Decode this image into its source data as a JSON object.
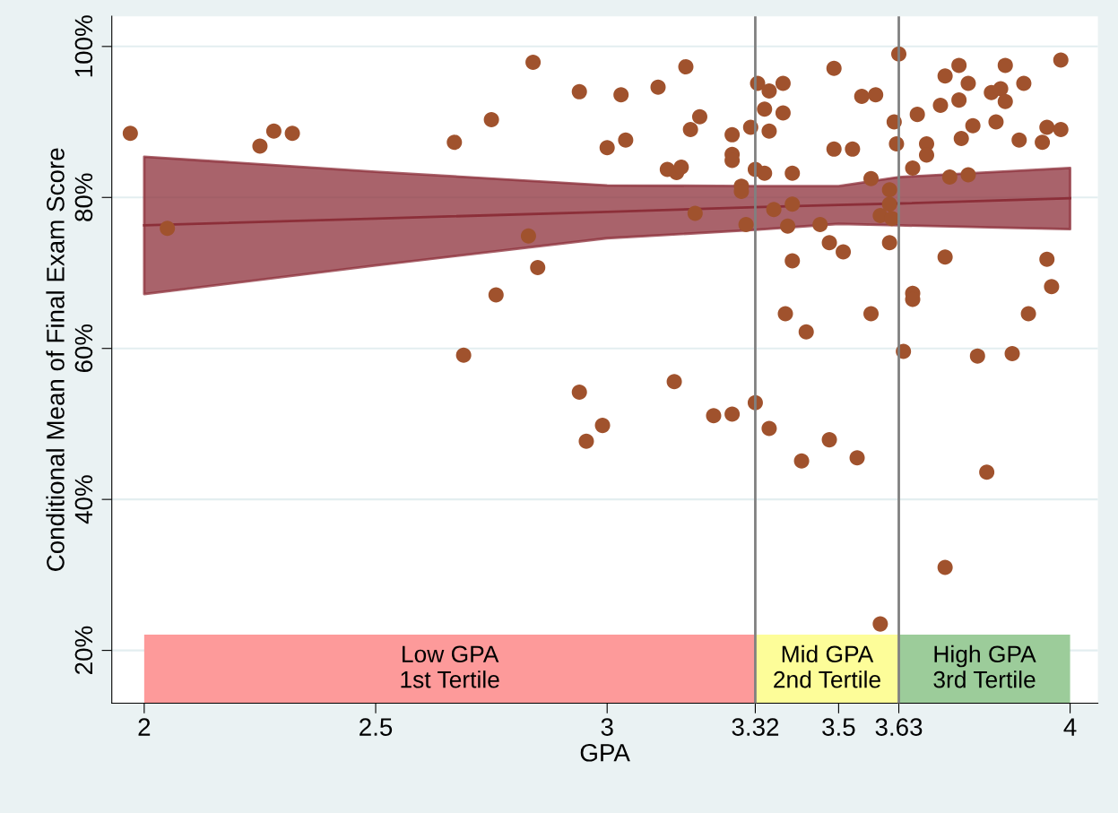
{
  "chart_data": {
    "type": "scatter",
    "xlabel": "GPA",
    "ylabel": "Conditional Mean of Final Exam Score",
    "xlim": [
      1.93,
      4.06
    ],
    "ylim": [
      13,
      104
    ],
    "xticks": [
      2,
      2.5,
      3,
      3.32,
      3.5,
      3.63,
      4
    ],
    "yticks": [
      {
        "value": 20,
        "label": "20%"
      },
      {
        "value": 40,
        "label": "40%"
      },
      {
        "value": 60,
        "label": "60%"
      },
      {
        "value": 80,
        "label": "80%"
      },
      {
        "value": 100,
        "label": "100%"
      }
    ],
    "grid": "y",
    "marker": "circle",
    "legend": false,
    "series": [
      {
        "type": "line",
        "marker": "none",
        "color": "#8c2f39",
        "x": [
          2,
          2.5,
          3,
          3.32,
          3.5,
          3.63,
          4
        ],
        "values": [
          76.3,
          77.2,
          78.1,
          78.7,
          79.0,
          79.2,
          79.9
        ],
        "lower": [
          67.2,
          71.0,
          74.6,
          75.7,
          76.5,
          76.3,
          75.8
        ],
        "upper": [
          85.4,
          83.4,
          81.6,
          81.5,
          81.5,
          82.7,
          83.9
        ]
      },
      {
        "color": "#a0522d",
        "x": [
          1.97,
          2.05,
          2.25,
          2.28,
          2.32,
          2.67,
          2.75,
          2.84,
          2.94,
          2.83,
          2.85,
          2.76,
          2.69,
          2.94,
          2.99,
          2.955,
          3.03,
          3.11,
          3.17,
          3.2,
          3.18,
          3.0,
          3.04,
          3.13,
          3.15,
          3.16,
          3.19,
          3.27,
          3.27,
          3.27,
          3.29,
          3.29,
          3.3,
          3.31,
          3.325,
          3.35,
          3.38,
          3.34,
          3.38,
          3.35,
          3.32,
          3.34,
          3.4,
          3.36,
          3.4,
          3.39,
          3.46,
          3.48,
          3.51,
          3.4,
          3.49,
          3.55,
          3.58,
          3.49,
          3.53,
          3.57,
          3.61,
          3.61,
          3.59,
          3.615,
          3.61,
          3.62,
          3.625,
          3.63,
          3.67,
          3.66,
          3.69,
          3.69,
          3.73,
          3.76,
          3.78,
          3.72,
          3.76,
          3.79,
          3.765,
          3.74,
          3.78,
          3.83,
          3.85,
          3.86,
          3.86,
          3.9,
          3.84,
          3.89,
          3.95,
          3.94,
          3.98,
          3.98,
          3.73,
          3.95,
          3.96,
          3.91,
          3.66,
          3.66,
          3.57,
          3.385,
          3.43,
          3.64,
          3.8,
          3.875,
          3.145,
          3.23,
          3.27,
          3.32,
          3.35,
          3.42,
          3.48,
          3.54,
          3.82,
          3.73,
          3.59
        ],
        "values": [
          88.5,
          75.9,
          86.8,
          88.8,
          88.5,
          87.3,
          90.3,
          97.9,
          94.0,
          74.9,
          70.7,
          67.1,
          59.1,
          54.2,
          49.8,
          47.7,
          93.6,
          94.6,
          97.3,
          90.7,
          89.0,
          86.6,
          87.6,
          83.7,
          83.3,
          84.0,
          77.9,
          88.3,
          85.7,
          84.9,
          81.5,
          80.8,
          76.4,
          89.3,
          95.1,
          94.1,
          95.1,
          91.7,
          91.2,
          88.8,
          83.7,
          83.2,
          83.2,
          78.4,
          79.1,
          76.2,
          76.4,
          74.0,
          72.8,
          71.6,
          97.1,
          93.4,
          93.6,
          86.4,
          86.4,
          82.5,
          81.0,
          79.1,
          77.6,
          77.2,
          74.0,
          90.0,
          87.1,
          99.0,
          91.0,
          83.9,
          87.1,
          85.6,
          96.1,
          97.5,
          95.1,
          92.2,
          92.9,
          89.5,
          87.8,
          82.7,
          83.0,
          93.9,
          94.4,
          97.5,
          92.7,
          95.1,
          90.0,
          87.6,
          89.3,
          87.3,
          89.0,
          98.2,
          72.1,
          71.8,
          68.2,
          64.6,
          67.3,
          66.5,
          64.6,
          64.6,
          62.2,
          59.6,
          59.0,
          59.3,
          55.6,
          51.1,
          51.3,
          52.8,
          49.4,
          45.1,
          47.9,
          45.5,
          43.6,
          31.0,
          23.5
        ]
      }
    ],
    "ref_lines": [
      {
        "axis": "x",
        "value": 3.32,
        "color": "#808080",
        "line_style": "solid"
      },
      {
        "axis": "x",
        "value": 3.63,
        "color": "#808080",
        "line_style": "solid"
      }
    ],
    "bands": [
      {
        "axis": "x",
        "from": 2,
        "to": 3.32,
        "label": "Low GPA\n1st Tertile",
        "color": "#fd9a9a"
      },
      {
        "axis": "x",
        "from": 3.32,
        "to": 3.63,
        "label": "Mid GPA\n2nd Tertile",
        "color": "#fdfd99"
      },
      {
        "axis": "x",
        "from": 3.63,
        "to": 4,
        "label": "High GPA\n3rd Tertile",
        "color": "#9ccc9a"
      }
    ]
  }
}
